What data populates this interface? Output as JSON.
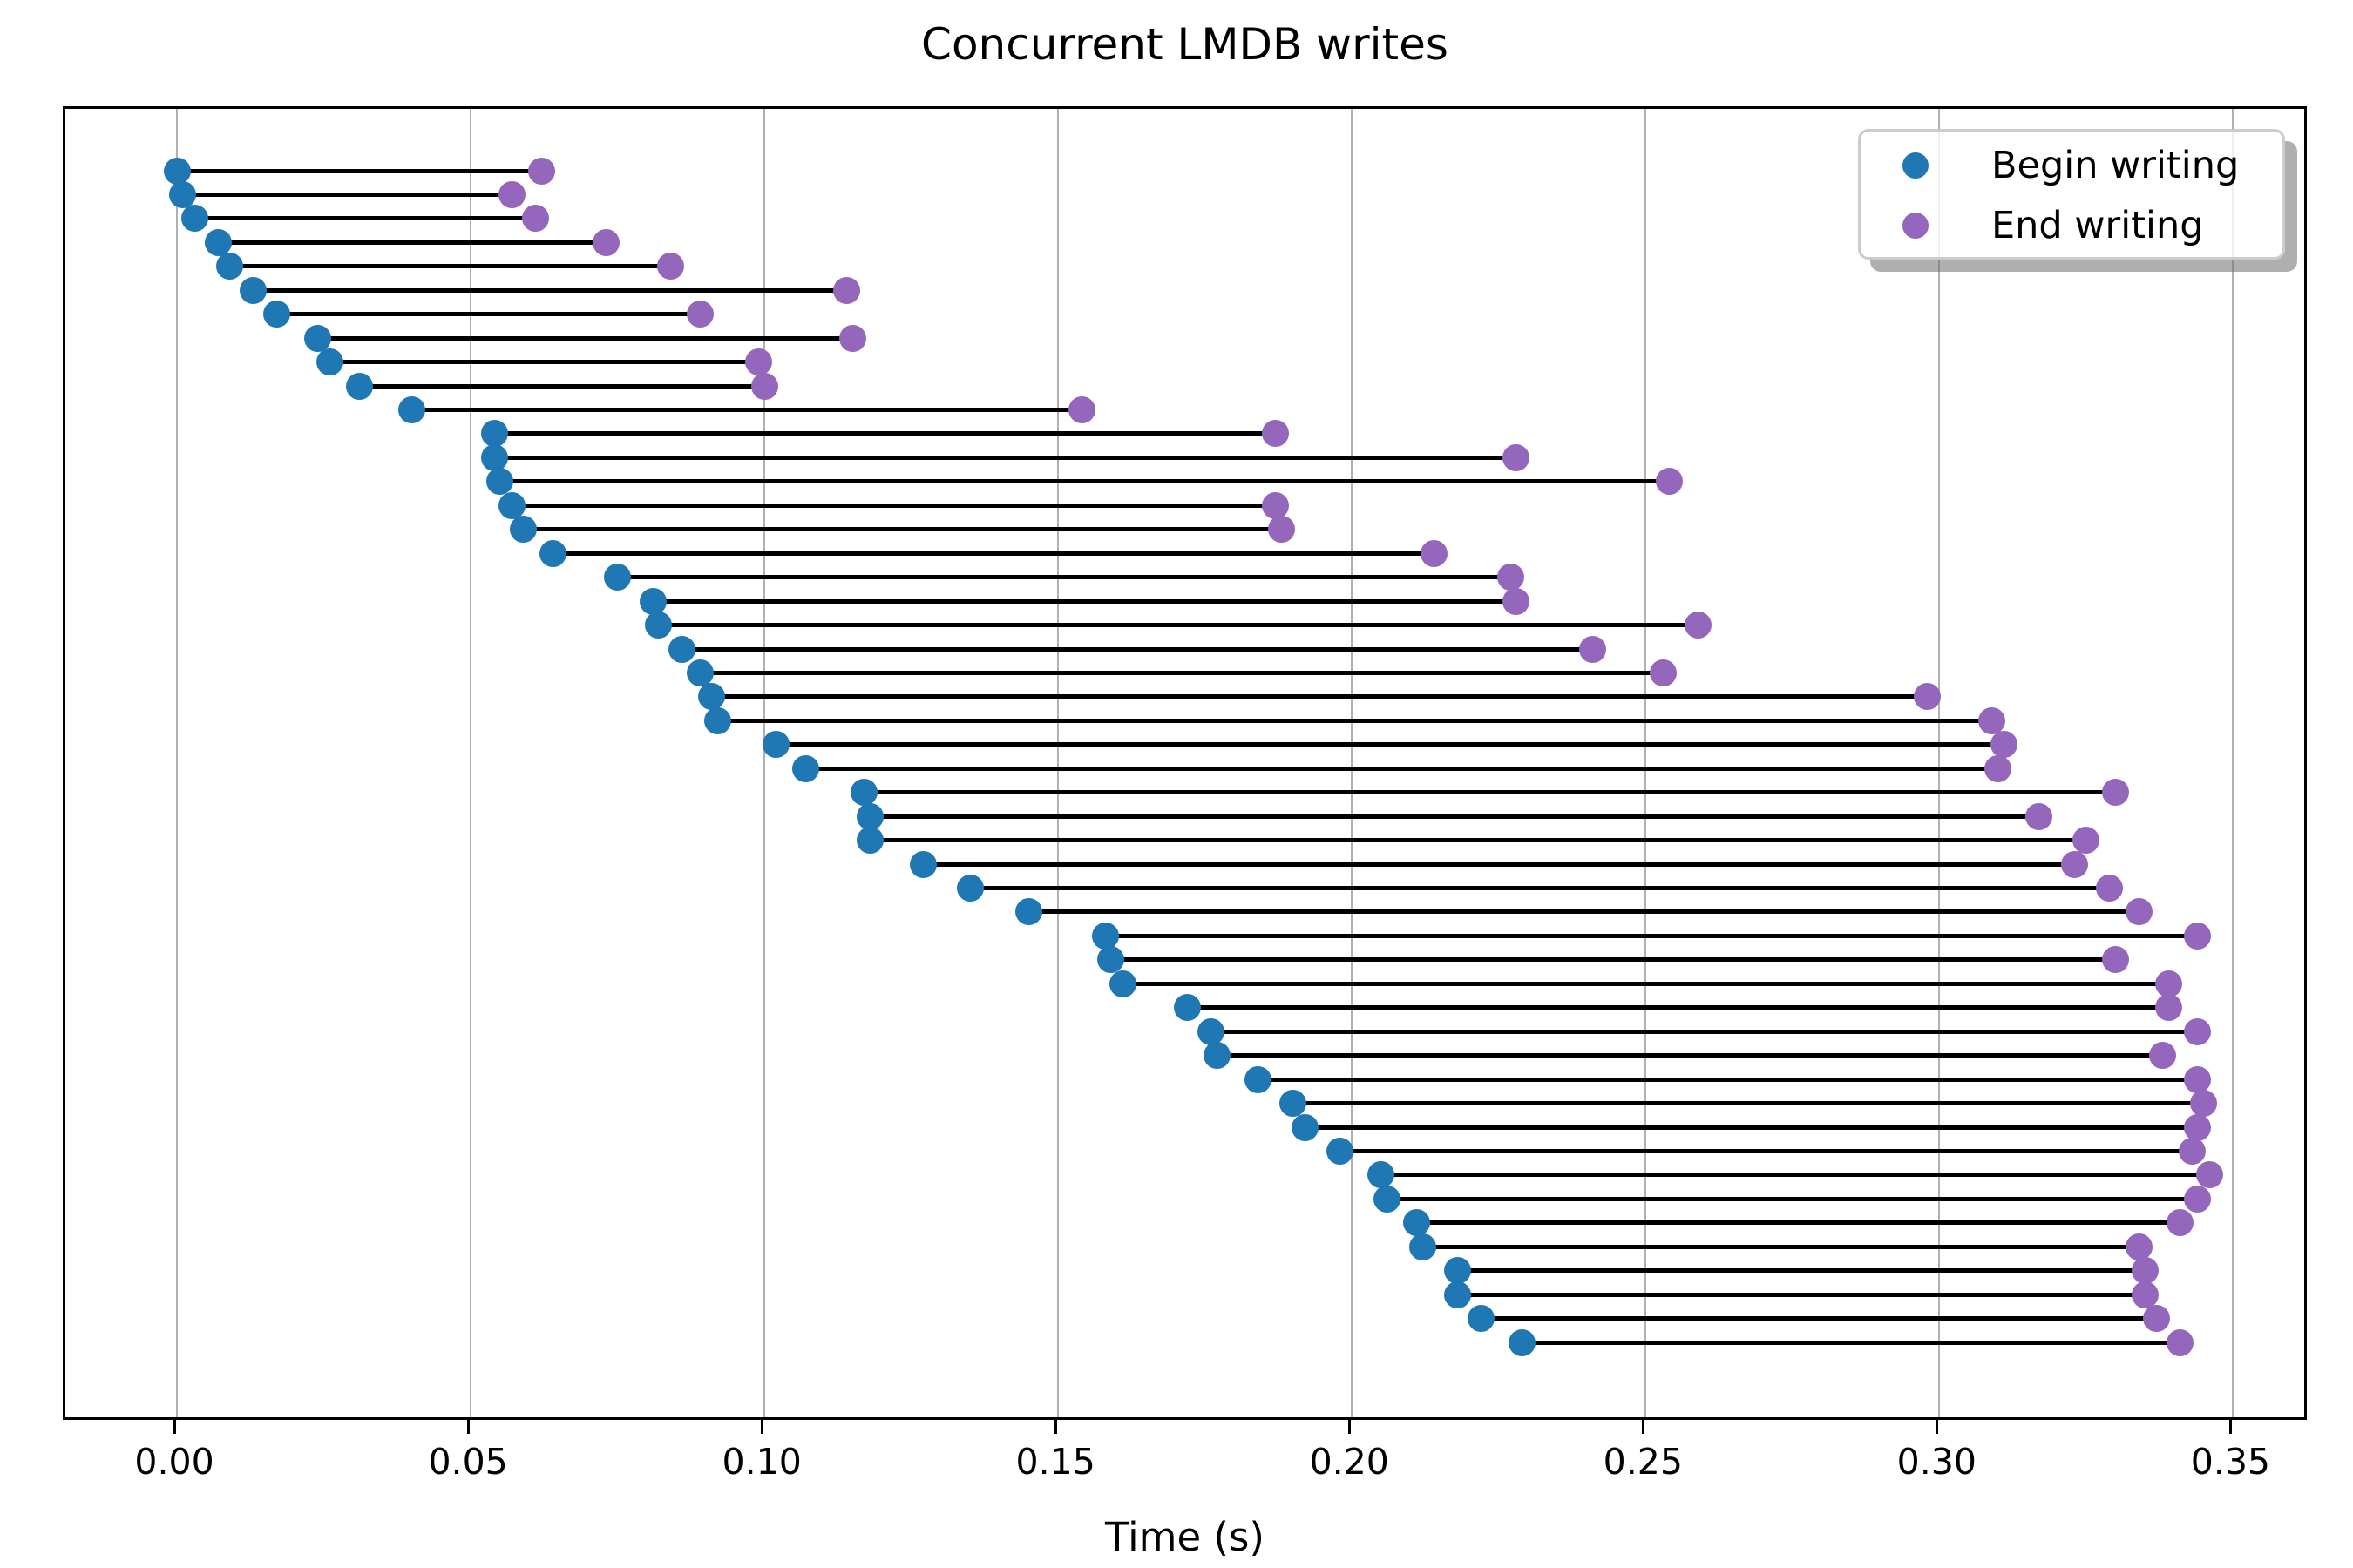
{
  "title": "Concurrent LMDB writes",
  "xlabel": "Time (s)",
  "legend": {
    "items": [
      {
        "label": "Begin writing",
        "marker": "circle-icon",
        "color": "#1f77b4"
      },
      {
        "label": "End writing",
        "marker": "circle-icon",
        "color": "#9467bd"
      }
    ]
  },
  "x_axis": {
    "tick_labels": [
      "0.00",
      "0.05",
      "0.10",
      "0.15",
      "0.20",
      "0.25",
      "0.30",
      "0.35"
    ],
    "tick_values": [
      0.0,
      0.05,
      0.1,
      0.15,
      0.2,
      0.25,
      0.3,
      0.35
    ]
  },
  "colors": {
    "begin": "#1f77b4",
    "end": "#9467bd",
    "connector": "#000000",
    "grid": "#b0b0b0",
    "spine": "#000000",
    "background": "#ffffff",
    "legend_edge": "#cccccc"
  },
  "chart_data": {
    "type": "scatter",
    "subtype": "dumbbell-gantt",
    "title": "Concurrent LMDB writes",
    "xlabel": "Time (s)",
    "ylabel": "",
    "xlim": [
      -0.019,
      0.363
    ],
    "grid": "vertical-only",
    "legend_position": "upper right",
    "rows": 50,
    "row_order": "first write at top, later writes below; y axis has no ticks",
    "connector": "black horizontal line joins each write's begin and end point",
    "series": [
      {
        "name": "Begin writing",
        "color": "#1f77b4",
        "values": [
          0.0,
          0.001,
          0.003,
          0.007,
          0.009,
          0.013,
          0.017,
          0.024,
          0.026,
          0.031,
          0.04,
          0.054,
          0.054,
          0.055,
          0.057,
          0.059,
          0.064,
          0.075,
          0.081,
          0.082,
          0.086,
          0.089,
          0.091,
          0.092,
          0.102,
          0.107,
          0.117,
          0.118,
          0.118,
          0.127,
          0.135,
          0.145,
          0.158,
          0.159,
          0.161,
          0.172,
          0.176,
          0.177,
          0.184,
          0.19,
          0.192,
          0.198,
          0.205,
          0.206,
          0.211,
          0.212,
          0.218,
          0.218,
          0.222,
          0.229
        ]
      },
      {
        "name": "End writing",
        "color": "#9467bd",
        "values": [
          0.062,
          0.057,
          0.061,
          0.073,
          0.084,
          0.114,
          0.089,
          0.115,
          0.099,
          0.1,
          0.154,
          0.187,
          0.228,
          0.254,
          0.187,
          0.188,
          0.214,
          0.227,
          0.228,
          0.259,
          0.241,
          0.253,
          0.298,
          0.309,
          0.311,
          0.31,
          0.33,
          0.317,
          0.325,
          0.323,
          0.329,
          0.334,
          0.344,
          0.33,
          0.339,
          0.339,
          0.344,
          0.338,
          0.344,
          0.345,
          0.344,
          0.343,
          0.346,
          0.344,
          0.341,
          0.334,
          0.335,
          0.335,
          0.337,
          0.341
        ]
      }
    ]
  }
}
